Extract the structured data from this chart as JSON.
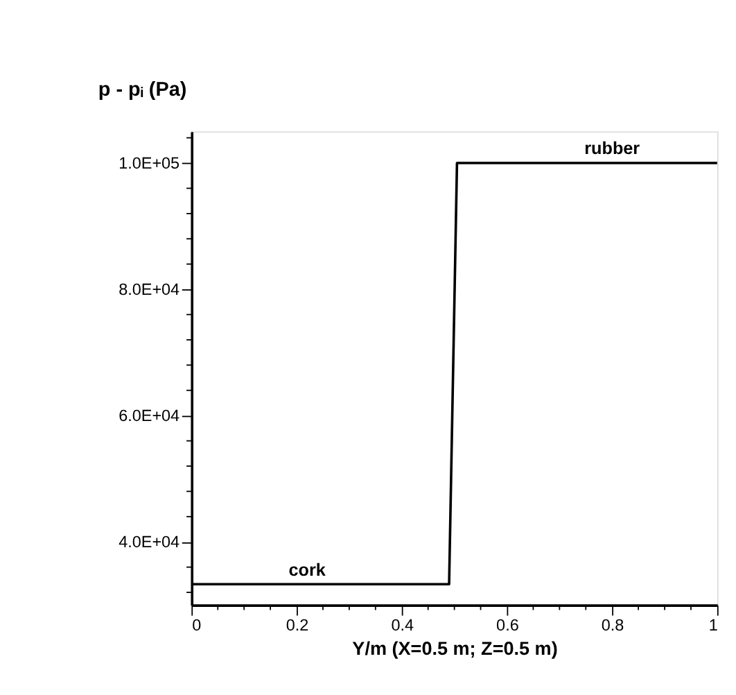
{
  "chart_data": {
    "type": "line",
    "ylabel": "p - pᵢ (Pa)",
    "xlabel": "Y/m (X=0.5 m; Z=0.5 m)",
    "x": [
      0,
      0.49,
      0.505,
      1
    ],
    "series": [
      {
        "color": "#000000",
        "values": [
          33300,
          33300,
          100000,
          100000
        ]
      }
    ],
    "xlim": [
      0,
      1
    ],
    "ylim": [
      30000,
      105000
    ],
    "xticks": [
      0,
      {
        "value": 0.05,
        "label": null
      },
      {
        "value": 0.1,
        "label": null
      },
      {
        "value": 0.15,
        "label": null
      },
      0.2,
      {
        "value": 0.25,
        "label": null
      },
      {
        "value": 0.3,
        "label": null
      },
      {
        "value": 0.35,
        "label": null
      },
      0.4,
      {
        "value": 0.45,
        "label": null
      },
      {
        "value": 0.5,
        "label": null
      },
      {
        "value": 0.55,
        "label": null
      },
      0.6,
      {
        "value": 0.65,
        "label": null
      },
      {
        "value": 0.7,
        "label": null
      },
      {
        "value": 0.75,
        "label": null
      },
      0.8,
      {
        "value": 0.85,
        "label": null
      },
      {
        "value": 0.9,
        "label": null
      },
      {
        "value": 0.95,
        "label": null
      },
      1
    ],
    "yticks": [
      {
        "value": 32000,
        "label": null
      },
      {
        "value": 36000,
        "label": null
      },
      {
        "value": 40000,
        "label": "4.0E+04"
      },
      {
        "value": 44000,
        "label": null
      },
      {
        "value": 48000,
        "label": null
      },
      {
        "value": 52000,
        "label": null
      },
      {
        "value": 56000,
        "label": null
      },
      {
        "value": 60000,
        "label": "6.0E+04"
      },
      {
        "value": 64000,
        "label": null
      },
      {
        "value": 68000,
        "label": null
      },
      {
        "value": 72000,
        "label": null
      },
      {
        "value": 76000,
        "label": null
      },
      {
        "value": 80000,
        "label": "8.0E+04"
      },
      {
        "value": 84000,
        "label": null
      },
      {
        "value": 88000,
        "label": null
      },
      {
        "value": 92000,
        "label": null
      },
      {
        "value": 96000,
        "label": null
      },
      {
        "value": 100000,
        "label": "1.0E+05"
      },
      {
        "value": 104000,
        "label": null
      }
    ],
    "annotations": [
      {
        "text": "cork",
        "x": 0.22,
        "y": 33300
      },
      {
        "text": "rubber",
        "x": 0.8,
        "y": 100000
      }
    ],
    "grid": false,
    "marker": "none",
    "line_style": "solid"
  }
}
